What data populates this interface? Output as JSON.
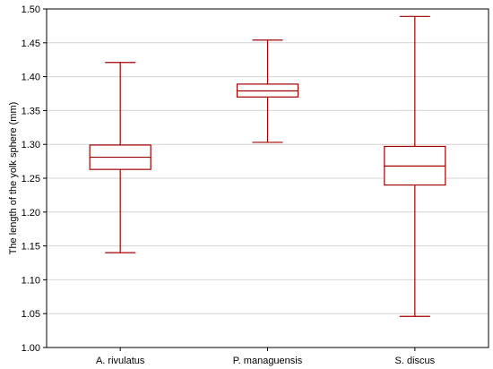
{
  "chart_data": {
    "type": "boxplot",
    "title": "",
    "xlabel": "",
    "ylabel": "The length of the yolk sphere (mm)",
    "ylim": [
      1.0,
      1.5
    ],
    "yticks": [
      "1.00",
      "1.05",
      "1.10",
      "1.15",
      "1.20",
      "1.25",
      "1.30",
      "1.35",
      "1.40",
      "1.45",
      "1.50"
    ],
    "grid": true,
    "box_color": "#a00000",
    "grid_color": "#d4d4d4",
    "categories": [
      "A. rivulatus",
      "P. managuensis",
      "S. discus"
    ],
    "boxes": [
      {
        "whisker_low": 1.14,
        "q1": 1.263,
        "median": 1.281,
        "q3": 1.299,
        "whisker_high": 1.421
      },
      {
        "whisker_low": 1.303,
        "q1": 1.37,
        "median": 1.379,
        "q3": 1.389,
        "whisker_high": 1.454
      },
      {
        "whisker_low": 1.046,
        "q1": 1.24,
        "median": 1.268,
        "q3": 1.297,
        "whisker_high": 1.489
      }
    ]
  }
}
